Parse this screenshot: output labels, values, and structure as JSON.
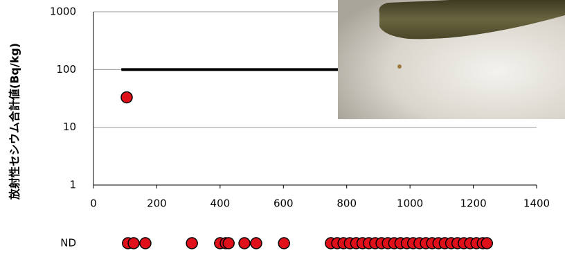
{
  "chart_data": {
    "type": "scatter",
    "ylabel": "放射性セシウム合計値(Bq/kg)",
    "log_y": true,
    "grid": true,
    "xlim": [
      0,
      1400
    ],
    "xticks": [
      0,
      200,
      400,
      600,
      800,
      1000,
      1200,
      1400
    ],
    "ylim": [
      1,
      1000
    ],
    "yticks": [
      1,
      10,
      100,
      1000
    ],
    "series": [
      {
        "color": "#e0101a",
        "x": [
          105
        ],
        "values": [
          33
        ]
      }
    ],
    "reference_line": {
      "y": 100,
      "x": [
        88,
        1400
      ]
    },
    "nd": {
      "label": "ND",
      "color": "#e0101a",
      "x": [
        109,
        127,
        164,
        311,
        400,
        418,
        427,
        477,
        514,
        602,
        750,
        770,
        790,
        810,
        830,
        850,
        870,
        890,
        910,
        930,
        950,
        970,
        990,
        1010,
        1030,
        1050,
        1070,
        1090,
        1110,
        1130,
        1150,
        1170,
        1190,
        1210,
        1230,
        1243
      ]
    }
  }
}
